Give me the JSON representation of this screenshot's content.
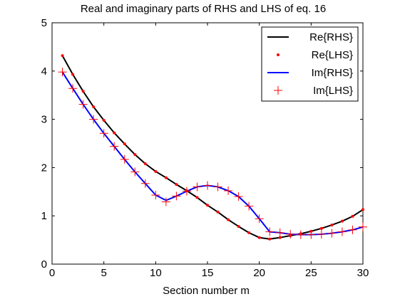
{
  "chart_data": {
    "type": "line",
    "title": "Real and imaginary parts of RHS and LHS of eq. 16",
    "xlabel": "Section number m",
    "ylabel": "",
    "xlim": [
      0,
      30
    ],
    "ylim": [
      0,
      5
    ],
    "xticks": [
      0,
      5,
      10,
      15,
      20,
      25,
      30
    ],
    "yticks": [
      0,
      1,
      2,
      3,
      4,
      5
    ],
    "grid": false,
    "legend_position": "top-right",
    "x": [
      1,
      2,
      3,
      4,
      5,
      6,
      7,
      8,
      9,
      10,
      11,
      12,
      13,
      14,
      15,
      16,
      17,
      18,
      19,
      20,
      21,
      22,
      23,
      24,
      25,
      26,
      27,
      28,
      29,
      30
    ],
    "series": [
      {
        "name": "Re{RHS}",
        "style": "line",
        "color": "#000000",
        "values": [
          4.32,
          3.93,
          3.58,
          3.26,
          2.98,
          2.72,
          2.49,
          2.27,
          2.08,
          1.92,
          1.79,
          1.65,
          1.52,
          1.38,
          1.22,
          1.08,
          0.92,
          0.78,
          0.65,
          0.55,
          0.52,
          0.55,
          0.59,
          0.63,
          0.68,
          0.74,
          0.81,
          0.89,
          0.99,
          1.13
        ]
      },
      {
        "name": "Re{LHS}",
        "style": "dot",
        "color": "#ff0000",
        "values": [
          4.32,
          3.93,
          3.58,
          3.26,
          2.98,
          2.72,
          2.49,
          2.27,
          2.08,
          1.92,
          1.79,
          1.65,
          1.52,
          1.38,
          1.22,
          1.08,
          0.92,
          0.78,
          0.65,
          0.55,
          0.52,
          0.55,
          0.59,
          0.63,
          0.68,
          0.74,
          0.81,
          0.89,
          0.99,
          1.13
        ]
      },
      {
        "name": "Im{RHS}",
        "style": "line",
        "color": "#0000ff",
        "values": [
          3.98,
          3.64,
          3.31,
          3.0,
          2.71,
          2.44,
          2.17,
          1.91,
          1.67,
          1.43,
          1.32,
          1.41,
          1.51,
          1.6,
          1.63,
          1.6,
          1.52,
          1.4,
          1.2,
          0.94,
          0.67,
          0.65,
          0.62,
          0.61,
          0.61,
          0.62,
          0.64,
          0.67,
          0.71,
          0.77
        ]
      },
      {
        "name": "Im{LHS}",
        "style": "plus",
        "color": "#ff0000",
        "values": [
          3.98,
          3.64,
          3.31,
          3.0,
          2.71,
          2.44,
          2.17,
          1.91,
          1.67,
          1.43,
          1.29,
          1.41,
          1.51,
          1.6,
          1.63,
          1.6,
          1.52,
          1.4,
          1.2,
          0.94,
          0.67,
          0.65,
          0.62,
          0.61,
          0.61,
          0.62,
          0.64,
          0.67,
          0.71,
          0.77
        ]
      }
    ]
  }
}
